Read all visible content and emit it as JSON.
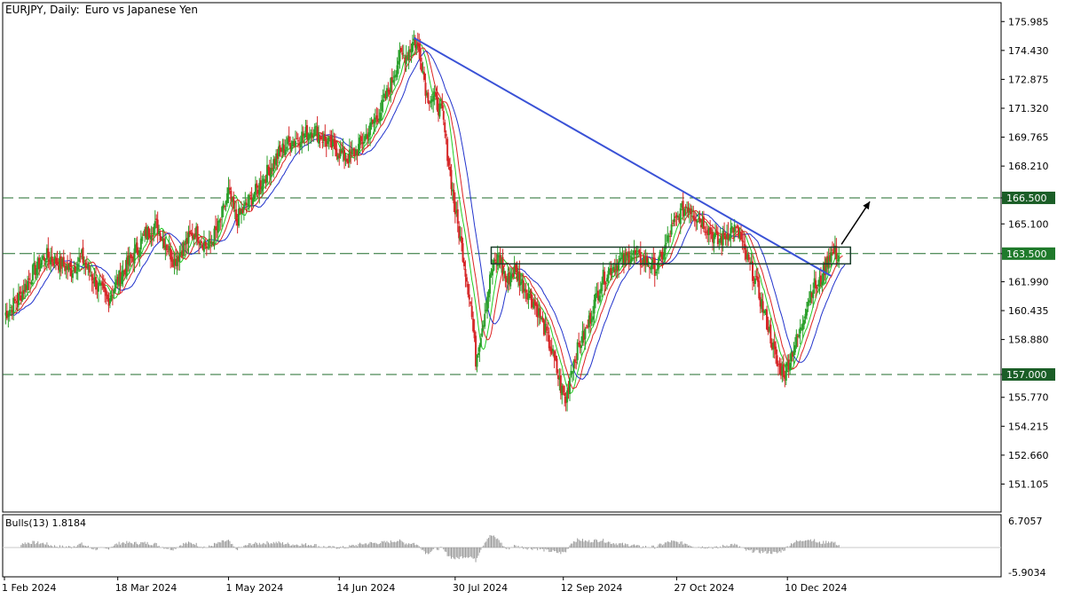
{
  "header": {
    "symbol": "EURJPY, Daily:",
    "description": "Euro vs Japanese Yen"
  },
  "indicator": {
    "name": "Bulls(13)",
    "value": "1.8184",
    "axis_max": "6.7057",
    "axis_min": "-5.9034"
  },
  "chart_data": {
    "type": "candlestick",
    "symbol": "EURJPY",
    "timeframe": "Daily",
    "ylim": [
      149.6,
      177.0
    ],
    "y_ticks": [
      "175.985",
      "174.430",
      "172.875",
      "171.320",
      "169.765",
      "168.210",
      "166.500",
      "165.100",
      "163.500",
      "161.990",
      "160.435",
      "158.880",
      "157.000",
      "155.770",
      "154.215",
      "152.660",
      "151.105"
    ],
    "x_ticks": [
      "1 Feb 2024",
      "18 Mar 2024",
      "1 May 2024",
      "14 Jun 2024",
      "30 Jul 2024",
      "12 Sep 2024",
      "27 Oct 2024",
      "10 Dec 2024"
    ],
    "levels": [
      {
        "value": 166.5,
        "label": "166.500"
      },
      {
        "value": 163.5,
        "label": "163.500"
      },
      {
        "value": 157.0,
        "label": "157.000"
      }
    ],
    "close_path": [
      [
        0,
        160.2
      ],
      [
        12,
        161.2
      ],
      [
        22,
        162.5
      ],
      [
        32,
        163.4
      ],
      [
        42,
        163.0
      ],
      [
        52,
        162.6
      ],
      [
        60,
        163.3
      ],
      [
        70,
        162.0
      ],
      [
        80,
        161.0
      ],
      [
        90,
        162.3
      ],
      [
        100,
        163.4
      ],
      [
        110,
        164.6
      ],
      [
        118,
        165.0
      ],
      [
        124,
        164.2
      ],
      [
        132,
        163.1
      ],
      [
        140,
        164.0
      ],
      [
        148,
        164.7
      ],
      [
        158,
        163.8
      ],
      [
        166,
        164.9
      ],
      [
        174,
        166.8
      ],
      [
        180,
        165.3
      ],
      [
        186,
        165.9
      ],
      [
        196,
        166.9
      ],
      [
        206,
        168.1
      ],
      [
        214,
        169.0
      ],
      [
        222,
        169.5
      ],
      [
        230,
        169.8
      ],
      [
        240,
        170.2
      ],
      [
        250,
        169.5
      ],
      [
        258,
        169.1
      ],
      [
        266,
        168.6
      ],
      [
        274,
        169.1
      ],
      [
        282,
        170.0
      ],
      [
        292,
        171.2
      ],
      [
        300,
        172.6
      ],
      [
        306,
        174.0
      ],
      [
        312,
        174.2
      ],
      [
        318,
        175.0
      ],
      [
        323,
        174.2
      ],
      [
        328,
        172.0
      ],
      [
        334,
        171.8
      ],
      [
        340,
        171.0
      ],
      [
        345,
        168.4
      ],
      [
        350,
        165.8
      ],
      [
        356,
        163.5
      ],
      [
        362,
        160.8
      ],
      [
        366,
        157.8
      ],
      [
        372,
        160.0
      ],
      [
        378,
        162.5
      ],
      [
        384,
        163.4
      ],
      [
        390,
        162.0
      ],
      [
        396,
        162.6
      ],
      [
        402,
        161.9
      ],
      [
        408,
        161.3
      ],
      [
        414,
        160.5
      ],
      [
        420,
        159.3
      ],
      [
        426,
        158.0
      ],
      [
        432,
        156.3
      ],
      [
        436,
        155.6
      ],
      [
        440,
        157.3
      ],
      [
        446,
        158.5
      ],
      [
        452,
        159.4
      ],
      [
        458,
        160.8
      ],
      [
        464,
        162.1
      ],
      [
        470,
        162.6
      ],
      [
        476,
        163.0
      ],
      [
        482,
        163.2
      ],
      [
        488,
        163.5
      ],
      [
        494,
        163.1
      ],
      [
        500,
        163.0
      ],
      [
        506,
        162.7
      ],
      [
        512,
        163.6
      ],
      [
        518,
        164.8
      ],
      [
        524,
        165.6
      ],
      [
        530,
        166.1
      ],
      [
        536,
        165.6
      ],
      [
        542,
        165.2
      ],
      [
        548,
        164.7
      ],
      [
        554,
        164.1
      ],
      [
        560,
        164.5
      ],
      [
        566,
        164.9
      ],
      [
        571,
        164.4
      ],
      [
        576,
        163.3
      ],
      [
        582,
        162.3
      ],
      [
        588,
        160.8
      ],
      [
        594,
        159.3
      ],
      [
        600,
        157.5
      ],
      [
        606,
        157.1
      ],
      [
        612,
        158.3
      ],
      [
        618,
        159.3
      ],
      [
        622,
        160.6
      ],
      [
        628,
        161.8
      ],
      [
        632,
        161.7
      ],
      [
        636,
        162.5
      ],
      [
        640,
        163.4
      ],
      [
        644,
        163.6
      ],
      [
        648,
        163.4
      ]
    ],
    "overlays": [
      {
        "name": "MA fast",
        "color": "#22cc22",
        "lag": 5
      },
      {
        "name": "MA mid",
        "color": "#dd2222",
        "lag": 9
      },
      {
        "name": "MA slow",
        "color": "#2233cc",
        "lag": 16
      }
    ],
    "trendline": {
      "color": "#3a52d6",
      "from": [
        318,
        175.1
      ],
      "to": [
        642,
        162.3
      ]
    },
    "box": {
      "from": [
        378,
        162.95
      ],
      "to": [
        657,
        163.85
      ]
    },
    "arrow": {
      "from": [
        650,
        164.0
      ],
      "to": [
        672,
        166.3
      ]
    }
  }
}
